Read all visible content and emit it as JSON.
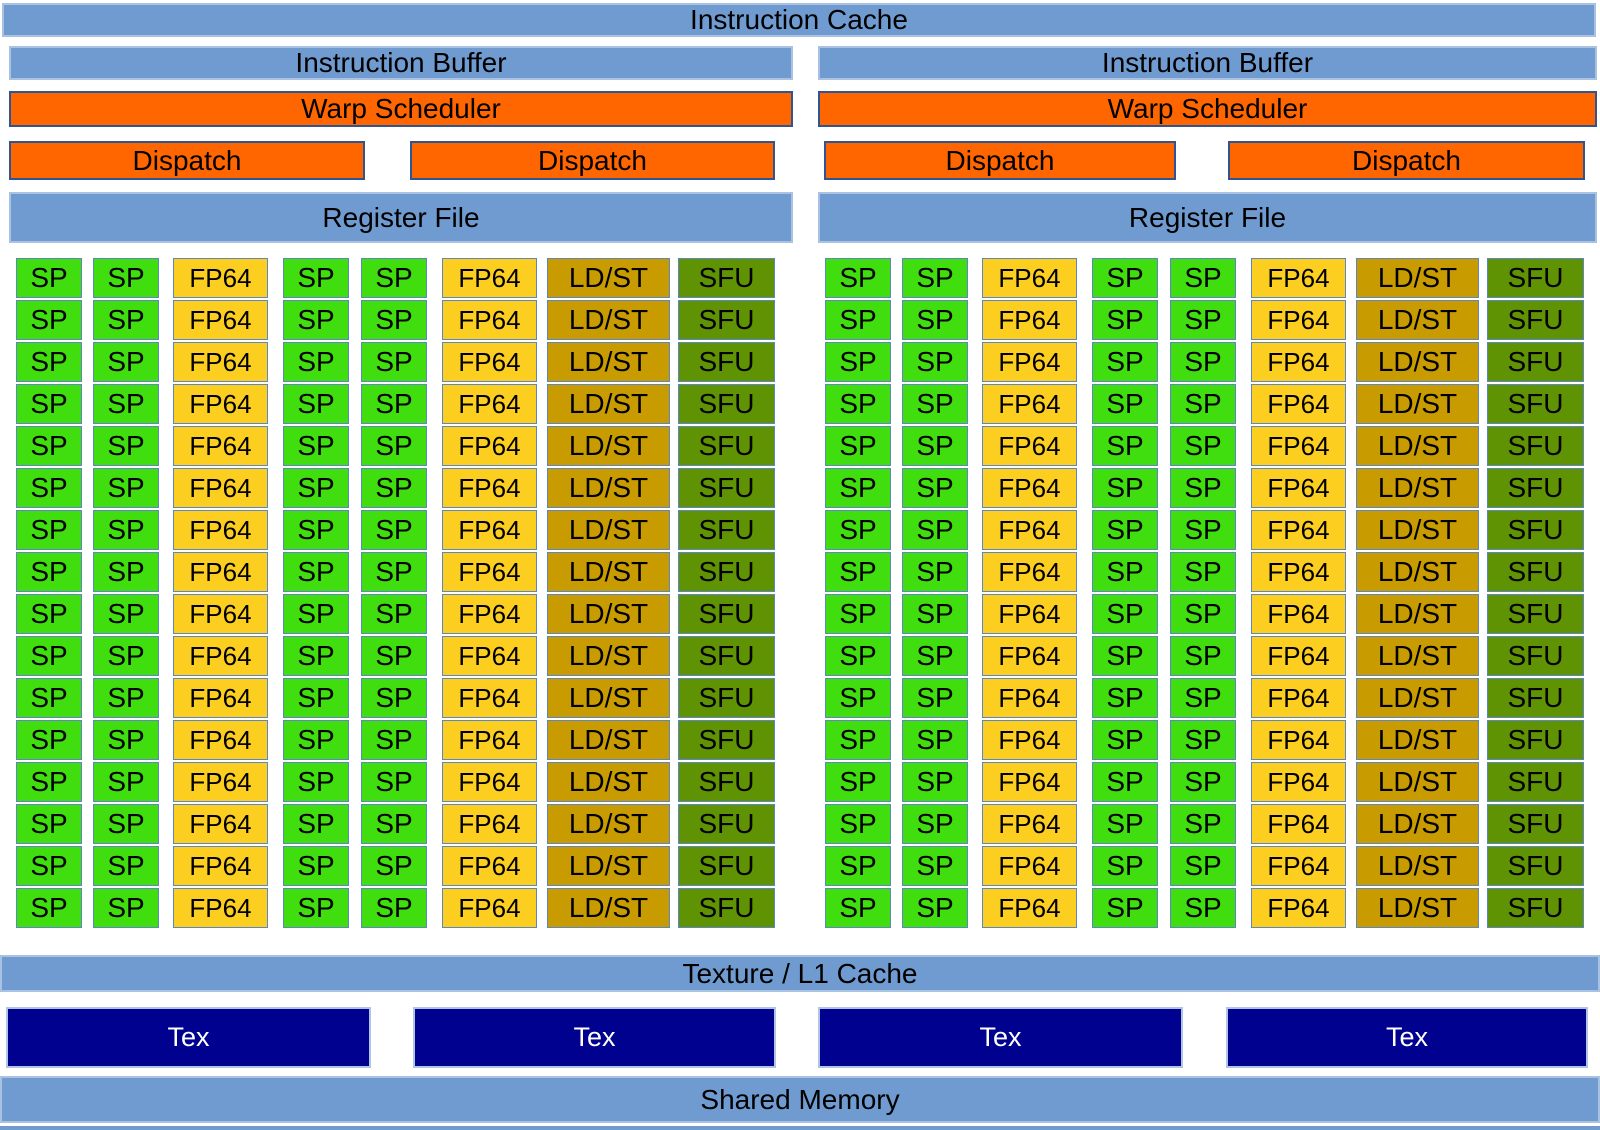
{
  "labels": {
    "instruction_cache": "Instruction Cache",
    "texture_l1_cache": "Texture / L1 Cache",
    "shared_memory": "Shared Memory"
  },
  "halves": [
    {
      "instruction_buffer": "Instruction Buffer",
      "warp_scheduler": "Warp Scheduler",
      "dispatch": [
        "Dispatch",
        "Dispatch"
      ],
      "register_file": "Register File"
    },
    {
      "instruction_buffer": "Instruction Buffer",
      "warp_scheduler": "Warp Scheduler",
      "dispatch": [
        "Dispatch",
        "Dispatch"
      ],
      "register_file": "Register File"
    }
  ],
  "grid": {
    "rows": 16,
    "columns": [
      {
        "type": "sp",
        "name": "sp-core",
        "label": "SP"
      },
      {
        "type": "sp",
        "name": "sp-core",
        "label": "SP"
      },
      {
        "type": "fp64",
        "name": "fp64-unit",
        "label": "FP64"
      },
      {
        "type": "sp",
        "name": "sp-core",
        "label": "SP"
      },
      {
        "type": "sp",
        "name": "sp-core",
        "label": "SP"
      },
      {
        "type": "fp64",
        "name": "fp64-unit",
        "label": "FP64"
      },
      {
        "type": "ldst",
        "name": "ldst-unit",
        "label": "LD/ST"
      },
      {
        "type": "sfu",
        "name": "sfu-unit",
        "label": "SFU"
      }
    ]
  },
  "tex_units": [
    "Tex",
    "Tex",
    "Tex",
    "Tex"
  ],
  "colors": {
    "bar_blue": "#6f9bd1",
    "orange": "#ff6600",
    "sp_green": "#40dd0f",
    "fp64_yellow": "#fcce20",
    "ldst_gold": "#c89c00",
    "sfu_olive": "#5f9303",
    "tex_navy": "#01018f"
  }
}
